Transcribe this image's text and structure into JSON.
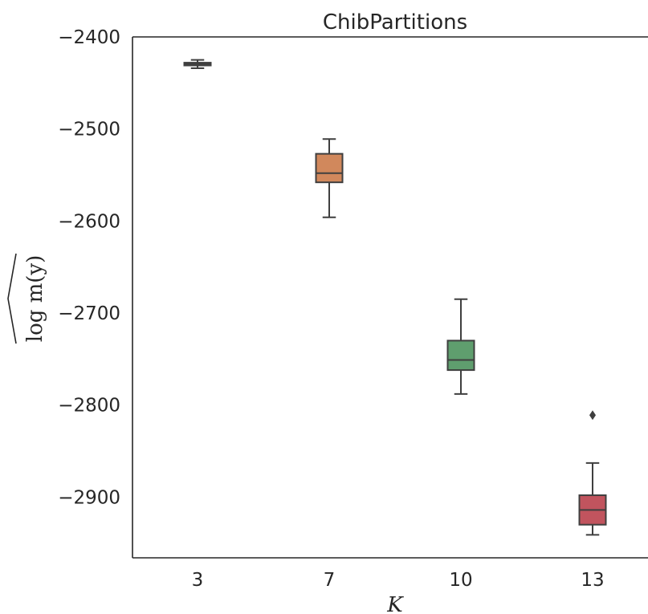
{
  "chart_data": {
    "type": "box",
    "title": "ChibPartitions",
    "xlabel": "K",
    "ylabel": "log m(y)",
    "categories": [
      "3",
      "7",
      "10",
      "13"
    ],
    "ylim": [
      -2966,
      -2400
    ],
    "yticks": [
      -2400,
      -2500,
      -2600,
      -2700,
      -2800,
      -2900
    ],
    "ytick_labels": [
      "−2400",
      "−2500",
      "−2600",
      "−2700",
      "−2800",
      "−2900"
    ],
    "boxes": [
      {
        "category": "3",
        "whislo": -2434,
        "q1": -2431,
        "med": -2429,
        "q3": -2428,
        "whishi": -2425,
        "fliers": [],
        "color": "#4a4a4a"
      },
      {
        "category": "7",
        "whislo": -2596,
        "q1": -2558,
        "med": -2548,
        "q3": -2527,
        "whishi": -2511,
        "fliers": [],
        "color": "#d1885c"
      },
      {
        "category": "10",
        "whislo": -2788,
        "q1": -2762,
        "med": -2751,
        "q3": -2730,
        "whishi": -2685,
        "fliers": [],
        "color": "#5f9e6e"
      },
      {
        "category": "13",
        "whislo": -2941,
        "q1": -2930,
        "med": -2914,
        "q3": -2898,
        "whishi": -2863,
        "fliers": [
          -2811
        ],
        "color": "#c1545e"
      }
    ],
    "grid": false,
    "edge_color": "#3f3f3f"
  }
}
